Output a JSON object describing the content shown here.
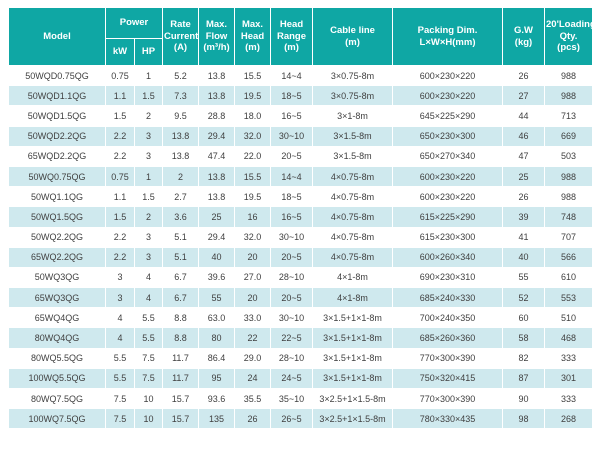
{
  "colors": {
    "header_bg": "#0fa7a4",
    "header_text": "#ffffff",
    "stripe_bg": "#cfe9ee",
    "body_text": "#3f3f3f",
    "separator": "#ffffff"
  },
  "table": {
    "header": {
      "model": "Model",
      "power": "Power",
      "kw": "kW",
      "hp": "HP",
      "rate_current": "Rate\nCurrent\n(A)",
      "max_flow": "Max.\nFlow\n(m³/h)",
      "max_head": "Max.\nHead\n(m)",
      "head_range": "Head\nRange\n(m)",
      "cable_line": "Cable line\n(m)",
      "packing_dim": "Packing Dim.\nL×W×H(mm)",
      "gw": "G.W\n(kg)",
      "loading_qty": "20'Loading\nQty.\n(pcs)"
    },
    "columns": [
      "Model",
      "kW",
      "HP",
      "Rate Current (A)",
      "Max. Flow (m³/h)",
      "Max. Head (m)",
      "Head Range (m)",
      "Cable line (m)",
      "Packing Dim. L×W×H(mm)",
      "G.W (kg)",
      "20'Loading Qty. (pcs)"
    ],
    "rows": [
      [
        "50WQD0.75QG",
        "0.75",
        "1",
        "5.2",
        "13.8",
        "15.5",
        "14~4",
        "3×0.75-8m",
        "600×230×220",
        "26",
        "988"
      ],
      [
        "50WQD1.1QG",
        "1.1",
        "1.5",
        "7.3",
        "13.8",
        "19.5",
        "18~5",
        "3×0.75-8m",
        "600×230×220",
        "27",
        "988"
      ],
      [
        "50WQD1.5QG",
        "1.5",
        "2",
        "9.5",
        "28.8",
        "18.0",
        "16~5",
        "3×1-8m",
        "645×225×290",
        "44",
        "713"
      ],
      [
        "50WQD2.2QG",
        "2.2",
        "3",
        "13.8",
        "29.4",
        "32.0",
        "30~10",
        "3×1.5-8m",
        "650×230×300",
        "46",
        "669"
      ],
      [
        "65WQD2.2QG",
        "2.2",
        "3",
        "13.8",
        "47.4",
        "22.0",
        "20~5",
        "3×1.5-8m",
        "650×270×340",
        "47",
        "503"
      ],
      [
        "50WQ0.75QG",
        "0.75",
        "1",
        "2",
        "13.8",
        "15.5",
        "14~4",
        "4×0.75-8m",
        "600×230×220",
        "25",
        "988"
      ],
      [
        "50WQ1.1QG",
        "1.1",
        "1.5",
        "2.7",
        "13.8",
        "19.5",
        "18~5",
        "4×0.75-8m",
        "600×230×220",
        "26",
        "988"
      ],
      [
        "50WQ1.5QG",
        "1.5",
        "2",
        "3.6",
        "25",
        "16",
        "16~5",
        "4×0.75-8m",
        "615×225×290",
        "39",
        "748"
      ],
      [
        "50WQ2.2QG",
        "2.2",
        "3",
        "5.1",
        "29.4",
        "32.0",
        "30~10",
        "4×0.75-8m",
        "615×230×300",
        "41",
        "707"
      ],
      [
        "65WQ2.2QG",
        "2.2",
        "3",
        "5.1",
        "40",
        "20",
        "20~5",
        "4×0.75-8m",
        "600×260×340",
        "40",
        "566"
      ],
      [
        "50WQ3QG",
        "3",
        "4",
        "6.7",
        "39.6",
        "27.0",
        "28~10",
        "4×1-8m",
        "690×230×310",
        "55",
        "610"
      ],
      [
        "65WQ3QG",
        "3",
        "4",
        "6.7",
        "55",
        "20",
        "20~5",
        "4×1-8m",
        "685×240×330",
        "52",
        "553"
      ],
      [
        "65WQ4QG",
        "4",
        "5.5",
        "8.8",
        "63.0",
        "33.0",
        "30~10",
        "3×1.5+1×1-8m",
        "700×240×350",
        "60",
        "510"
      ],
      [
        "80WQ4QG",
        "4",
        "5.5",
        "8.8",
        "80",
        "22",
        "22~5",
        "3×1.5+1×1-8m",
        "685×260×360",
        "58",
        "468"
      ],
      [
        "80WQ5.5QG",
        "5.5",
        "7.5",
        "11.7",
        "86.4",
        "29.0",
        "28~10",
        "3×1.5+1×1-8m",
        "770×300×390",
        "82",
        "333"
      ],
      [
        "100WQ5.5QG",
        "5.5",
        "7.5",
        "11.7",
        "95",
        "24",
        "24~5",
        "3×1.5+1×1-8m",
        "750×320×415",
        "87",
        "301"
      ],
      [
        "80WQ7.5QG",
        "7.5",
        "10",
        "15.7",
        "93.6",
        "35.5",
        "35~10",
        "3×2.5+1×1.5-8m",
        "770×300×390",
        "90",
        "333"
      ],
      [
        "100WQ7.5QG",
        "7.5",
        "10",
        "15.7",
        "135",
        "26",
        "26~5",
        "3×2.5+1×1.5-8m",
        "780×330×435",
        "98",
        "268"
      ]
    ]
  }
}
